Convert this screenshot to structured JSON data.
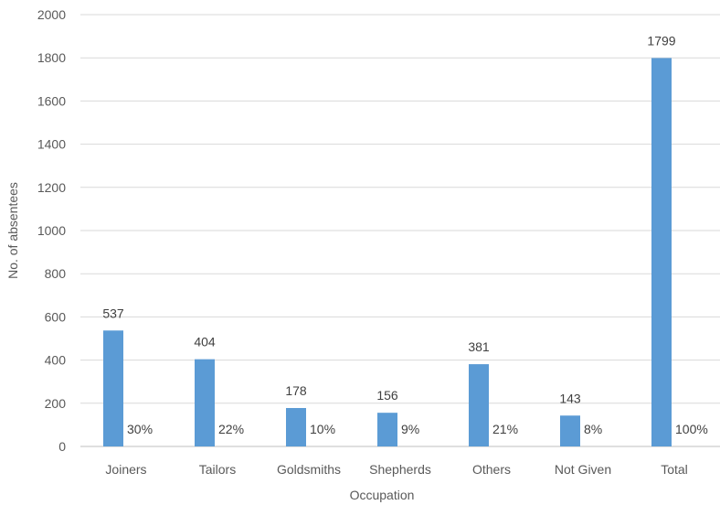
{
  "chart_data": {
    "type": "bar",
    "categories": [
      "Joiners",
      "Tailors",
      "Goldsmiths",
      "Shepherds",
      "Others",
      "Not Given",
      "Total"
    ],
    "values": [
      537,
      404,
      178,
      156,
      381,
      143,
      1799
    ],
    "percent_labels": [
      "30%",
      "22%",
      "10%",
      "9%",
      "21%",
      "8%",
      "100%"
    ],
    "xlabel": "Occupation",
    "ylabel": "No. of absentees",
    "ylim": [
      0,
      2000
    ],
    "yticks": [
      0,
      200,
      400,
      600,
      800,
      1000,
      1200,
      1400,
      1600,
      1800,
      2000
    ],
    "grid": true,
    "legend": "none",
    "colors": {
      "bar": "#5b9bd5"
    }
  }
}
